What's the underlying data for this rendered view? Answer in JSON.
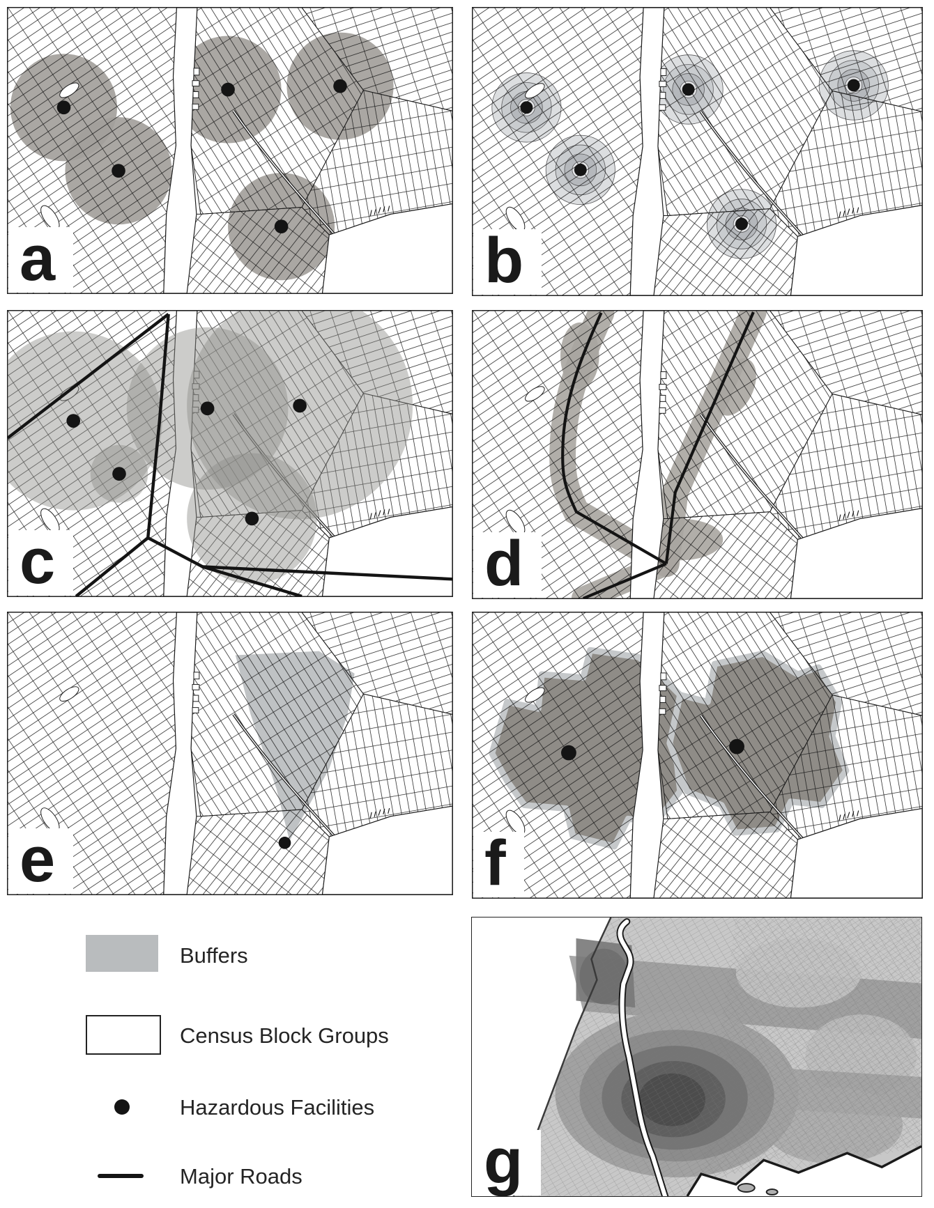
{
  "figure": {
    "type": "multi-panel map figure",
    "panels": [
      {
        "id": "a",
        "label": "a",
        "buffer_style": "simple circular buffers",
        "dot_radius": 10,
        "buffer_radius": 78,
        "facilities": [
          [
            82,
            145
          ],
          [
            162,
            237
          ],
          [
            322,
            119
          ],
          [
            486,
            114
          ],
          [
            400,
            318
          ]
        ]
      },
      {
        "id": "b",
        "label": "b",
        "buffer_style": "concentric ring buffers",
        "dot_radius": 9,
        "ring_radii": [
          50,
          36,
          23,
          12
        ],
        "facilities": [
          [
            78,
            144
          ],
          [
            156,
            234
          ],
          [
            312,
            118
          ],
          [
            389,
            312
          ],
          [
            551,
            112
          ]
        ]
      },
      {
        "id": "c",
        "label": "c",
        "buffer_style": "large overlapping circular buffers",
        "dot_radius": 10,
        "buffer_radii": [
          130,
          118,
          165,
          42,
          95
        ],
        "facilities": [
          [
            96,
            160
          ],
          [
            292,
            142
          ],
          [
            427,
            138
          ],
          [
            163,
            237
          ],
          [
            357,
            302
          ]
        ]
      },
      {
        "id": "d",
        "label": "d",
        "buffer_style": "buffers along major roads",
        "facilities": []
      },
      {
        "id": "e",
        "label": "e",
        "buffer_style": "plume wedge from facility",
        "dot_radius": 9,
        "facilities": [
          [
            405,
            339
          ]
        ]
      },
      {
        "id": "f",
        "label": "f",
        "buffer_style": "aggregated block-group buffers",
        "dot_radius": 11,
        "facilities": [
          [
            139,
            204
          ],
          [
            382,
            195
          ]
        ]
      },
      {
        "id": "g",
        "label": "g",
        "buffer_style": "kernel density surface",
        "facilities": []
      }
    ],
    "legend": {
      "items": [
        {
          "key": "buffers",
          "swatch": "gray-rect",
          "label": "Buffers"
        },
        {
          "key": "census-block-groups",
          "swatch": "white-rect",
          "label": "Census Block Groups"
        },
        {
          "key": "hazardous-facilities",
          "swatch": "black-dot",
          "label": "Hazardous Facilities"
        },
        {
          "key": "major-roads",
          "swatch": "black-line",
          "label": "Major Roads"
        }
      ]
    },
    "colors": {
      "buffer_fill_a": "#a3a09b",
      "ring_fills": [
        "#dcdee0",
        "#c9cccf",
        "#b5b8bc",
        "#e3e4e6"
      ],
      "ring_stroke": "#58585a",
      "buffer_fill_c": "#8f8d89",
      "corridor_buffer": "#a8a5a0",
      "wedge_fill": "#bcbfc1",
      "blob_fill": "#8f8c87",
      "blob_halo": "#c5c8ca",
      "legend_swatch": "#b9bcbe",
      "facility_dot": "#141414",
      "road": "#141414",
      "street": "#1b1b1b"
    }
  }
}
